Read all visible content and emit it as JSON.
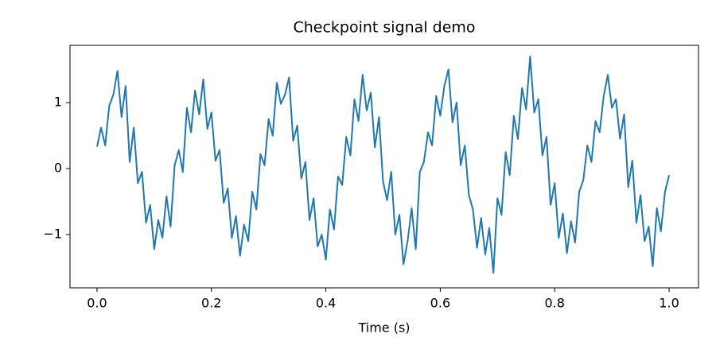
{
  "chart_data": {
    "type": "line",
    "title": "Checkpoint signal demo",
    "x_label": "Time (s)",
    "x": [
      0,
      0.0071,
      0.0143,
      0.0214,
      0.0286,
      0.0357,
      0.0429,
      0.05,
      0.0571,
      0.0643,
      0.0714,
      0.0786,
      0.0857,
      0.0929,
      0.1,
      0.1071,
      0.1143,
      0.1214,
      0.1286,
      0.1357,
      0.1429,
      0.15,
      0.1571,
      0.1643,
      0.1714,
      0.1786,
      0.1857,
      0.1929,
      0.2,
      0.2071,
      0.2143,
      0.2214,
      0.2286,
      0.2357,
      0.2429,
      0.25,
      0.2571,
      0.2643,
      0.2714,
      0.2786,
      0.2857,
      0.2929,
      0.3,
      0.3071,
      0.3143,
      0.3214,
      0.3286,
      0.3357,
      0.3429,
      0.35,
      0.3571,
      0.3643,
      0.3714,
      0.3786,
      0.3857,
      0.3929,
      0.4,
      0.4071,
      0.4143,
      0.4214,
      0.4286,
      0.4357,
      0.4429,
      0.45,
      0.4571,
      0.4643,
      0.4714,
      0.4786,
      0.4857,
      0.4929,
      0.5,
      0.5071,
      0.5143,
      0.5214,
      0.5286,
      0.5357,
      0.5429,
      0.55,
      0.5571,
      0.5643,
      0.5714,
      0.5786,
      0.5857,
      0.5929,
      0.6,
      0.6071,
      0.6143,
      0.6214,
      0.6286,
      0.6357,
      0.6429,
      0.65,
      0.6571,
      0.6643,
      0.6714,
      0.6786,
      0.6857,
      0.6929,
      0.7,
      0.7071,
      0.7143,
      0.7214,
      0.7286,
      0.7357,
      0.7429,
      0.75,
      0.7571,
      0.7643,
      0.7714,
      0.7786,
      0.7857,
      0.7929,
      0.8,
      0.8071,
      0.8143,
      0.8214,
      0.8286,
      0.8357,
      0.8429,
      0.85,
      0.8571,
      0.8643,
      0.8714,
      0.8786,
      0.8857,
      0.8929,
      0.9,
      0.9071,
      0.9143,
      0.9214,
      0.9286,
      0.9357,
      0.9429,
      0.95,
      0.9571,
      0.9643,
      0.9714,
      0.9786,
      0.9857,
      0.9929,
      1.0
    ],
    "series": [
      {
        "color": "#1f77b4",
        "values": [
          0.33,
          0.62,
          0.35,
          0.95,
          1.12,
          1.48,
          0.78,
          1.25,
          0.1,
          0.62,
          -0.22,
          -0.05,
          -0.82,
          -0.55,
          -1.22,
          -0.78,
          -1.05,
          -0.42,
          -0.88,
          0.05,
          0.28,
          -0.05,
          0.92,
          0.55,
          1.18,
          0.82,
          1.35,
          0.6,
          0.85,
          0.12,
          0.28,
          -0.52,
          -0.3,
          -1.05,
          -0.72,
          -1.32,
          -0.85,
          -1.1,
          -0.35,
          -0.62,
          0.22,
          0.05,
          0.75,
          0.5,
          1.3,
          0.98,
          1.12,
          1.38,
          0.42,
          0.65,
          -0.15,
          0.1,
          -0.78,
          -0.45,
          -1.18,
          -1.0,
          -1.38,
          -0.62,
          -0.92,
          -0.12,
          -0.25,
          0.48,
          0.2,
          1.05,
          0.72,
          1.42,
          0.88,
          1.15,
          0.32,
          0.78,
          -0.2,
          -0.48,
          -0.05,
          -1.0,
          -0.7,
          -1.45,
          -1.1,
          -0.6,
          -1.22,
          -0.05,
          0.1,
          0.55,
          0.35,
          1.1,
          0.8,
          1.25,
          1.5,
          0.7,
          1.0,
          0.05,
          0.35,
          -0.4,
          -0.62,
          -1.2,
          -0.75,
          -1.3,
          -0.9,
          -1.58,
          -0.45,
          -0.7,
          0.25,
          -0.1,
          0.8,
          0.45,
          1.22,
          0.9,
          1.7,
          0.85,
          1.05,
          0.2,
          0.48,
          -0.55,
          -0.22,
          -1.05,
          -0.68,
          -1.28,
          -0.8,
          -1.12,
          -0.35,
          -0.18,
          0.35,
          0.1,
          0.72,
          0.55,
          1.1,
          1.42,
          0.92,
          1.05,
          0.45,
          0.82,
          -0.28,
          0.12,
          -0.82,
          -0.4,
          -1.1,
          -0.88,
          -1.48,
          -0.6,
          -0.95,
          -0.35,
          -0.1
        ]
      }
    ],
    "xlim": [
      -0.0472,
      1.0514
    ],
    "xticks": [
      {
        "value": 0,
        "label": "0.0"
      },
      0.2,
      0.4,
      0.6,
      0.8,
      {
        "value": 1,
        "label": "1.0"
      }
    ],
    "ylim": [
      -1.807,
      1.867
    ],
    "yticks": [
      {
        "value": -1,
        "label": "−1"
      },
      0,
      1
    ],
    "grid": false
  }
}
